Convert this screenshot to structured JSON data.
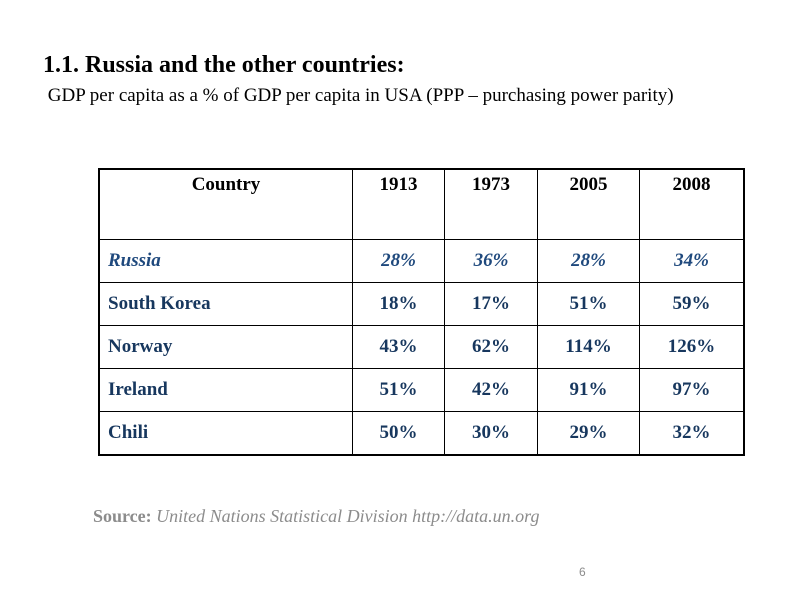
{
  "header": {
    "title": "1.1. Russia and the other countries:",
    "subtitle": " GDP per capita as a % of GDP per capita in USA (PPP – purchasing power parity)"
  },
  "table": {
    "columns": [
      "Country",
      "1913",
      "1973",
      "2005",
      "2008"
    ],
    "rows": [
      [
        "Russia",
        "28%",
        "36%",
        "28%",
        "34%"
      ],
      [
        "South Korea",
        "18%",
        "17%",
        "51%",
        "59%"
      ],
      [
        "Norway",
        "43%",
        "62%",
        "114%",
        "126%"
      ],
      [
        "Ireland",
        "51%",
        "42%",
        "91%",
        "97%"
      ],
      [
        "Chili",
        "50%",
        "30%",
        "29%",
        "32%"
      ]
    ]
  },
  "source": {
    "label": "Source:",
    "text": "United Nations Statistical Division http://data.un.org"
  },
  "page_number": "6"
}
